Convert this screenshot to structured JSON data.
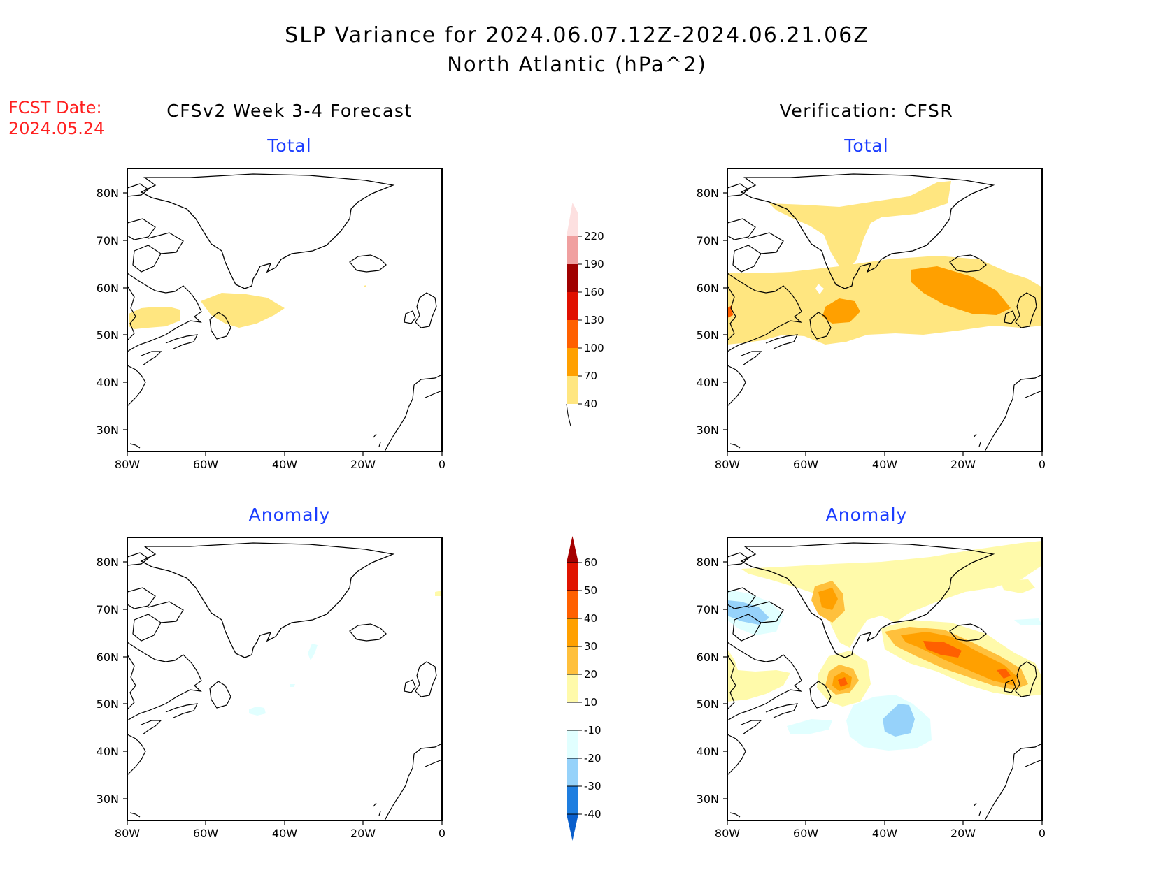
{
  "title": {
    "line1": "SLP Variance for 2024.06.07.12Z-2024.06.21.06Z",
    "line2": "North Atlantic (hPa^2)"
  },
  "fcst_date": {
    "label": "FCST Date:",
    "value": "2024.05.24"
  },
  "columns": {
    "left": "CFSv2 Week 3-4 Forecast",
    "right": "Verification: CFSR"
  },
  "panel_titles": {
    "total": "Total",
    "anomaly": "Anomaly"
  },
  "axes": {
    "lat_labels": [
      "80N",
      "70N",
      "60N",
      "50N",
      "40N",
      "30N"
    ],
    "lon_labels": [
      "80W",
      "60W",
      "40W",
      "20W",
      "0"
    ]
  },
  "total_colorbar": {
    "labels": [
      "40",
      "70",
      "100",
      "130",
      "160",
      "190",
      "220"
    ],
    "colors": [
      "#ffe680",
      "#ffa000",
      "#ff6000",
      "#e01000",
      "#a00000",
      "#f0a0a0",
      "#fde0e0"
    ]
  },
  "anomaly_colorbar": {
    "labels": [
      "-40",
      "-30",
      "-20",
      "-10",
      "10",
      "20",
      "30",
      "40",
      "50",
      "60"
    ],
    "colors": [
      "#0a5fcc",
      "#1e7ee0",
      "#96d2fa",
      "#e1ffff",
      "#ffffff",
      "#fffaaa",
      "#ffc03c",
      "#ffa000",
      "#ff6000",
      "#e01400",
      "#a50000"
    ]
  },
  "colors": {
    "title": "#000000",
    "panel_title": "#1a3cff",
    "fcst_date": "#ff2020"
  }
}
